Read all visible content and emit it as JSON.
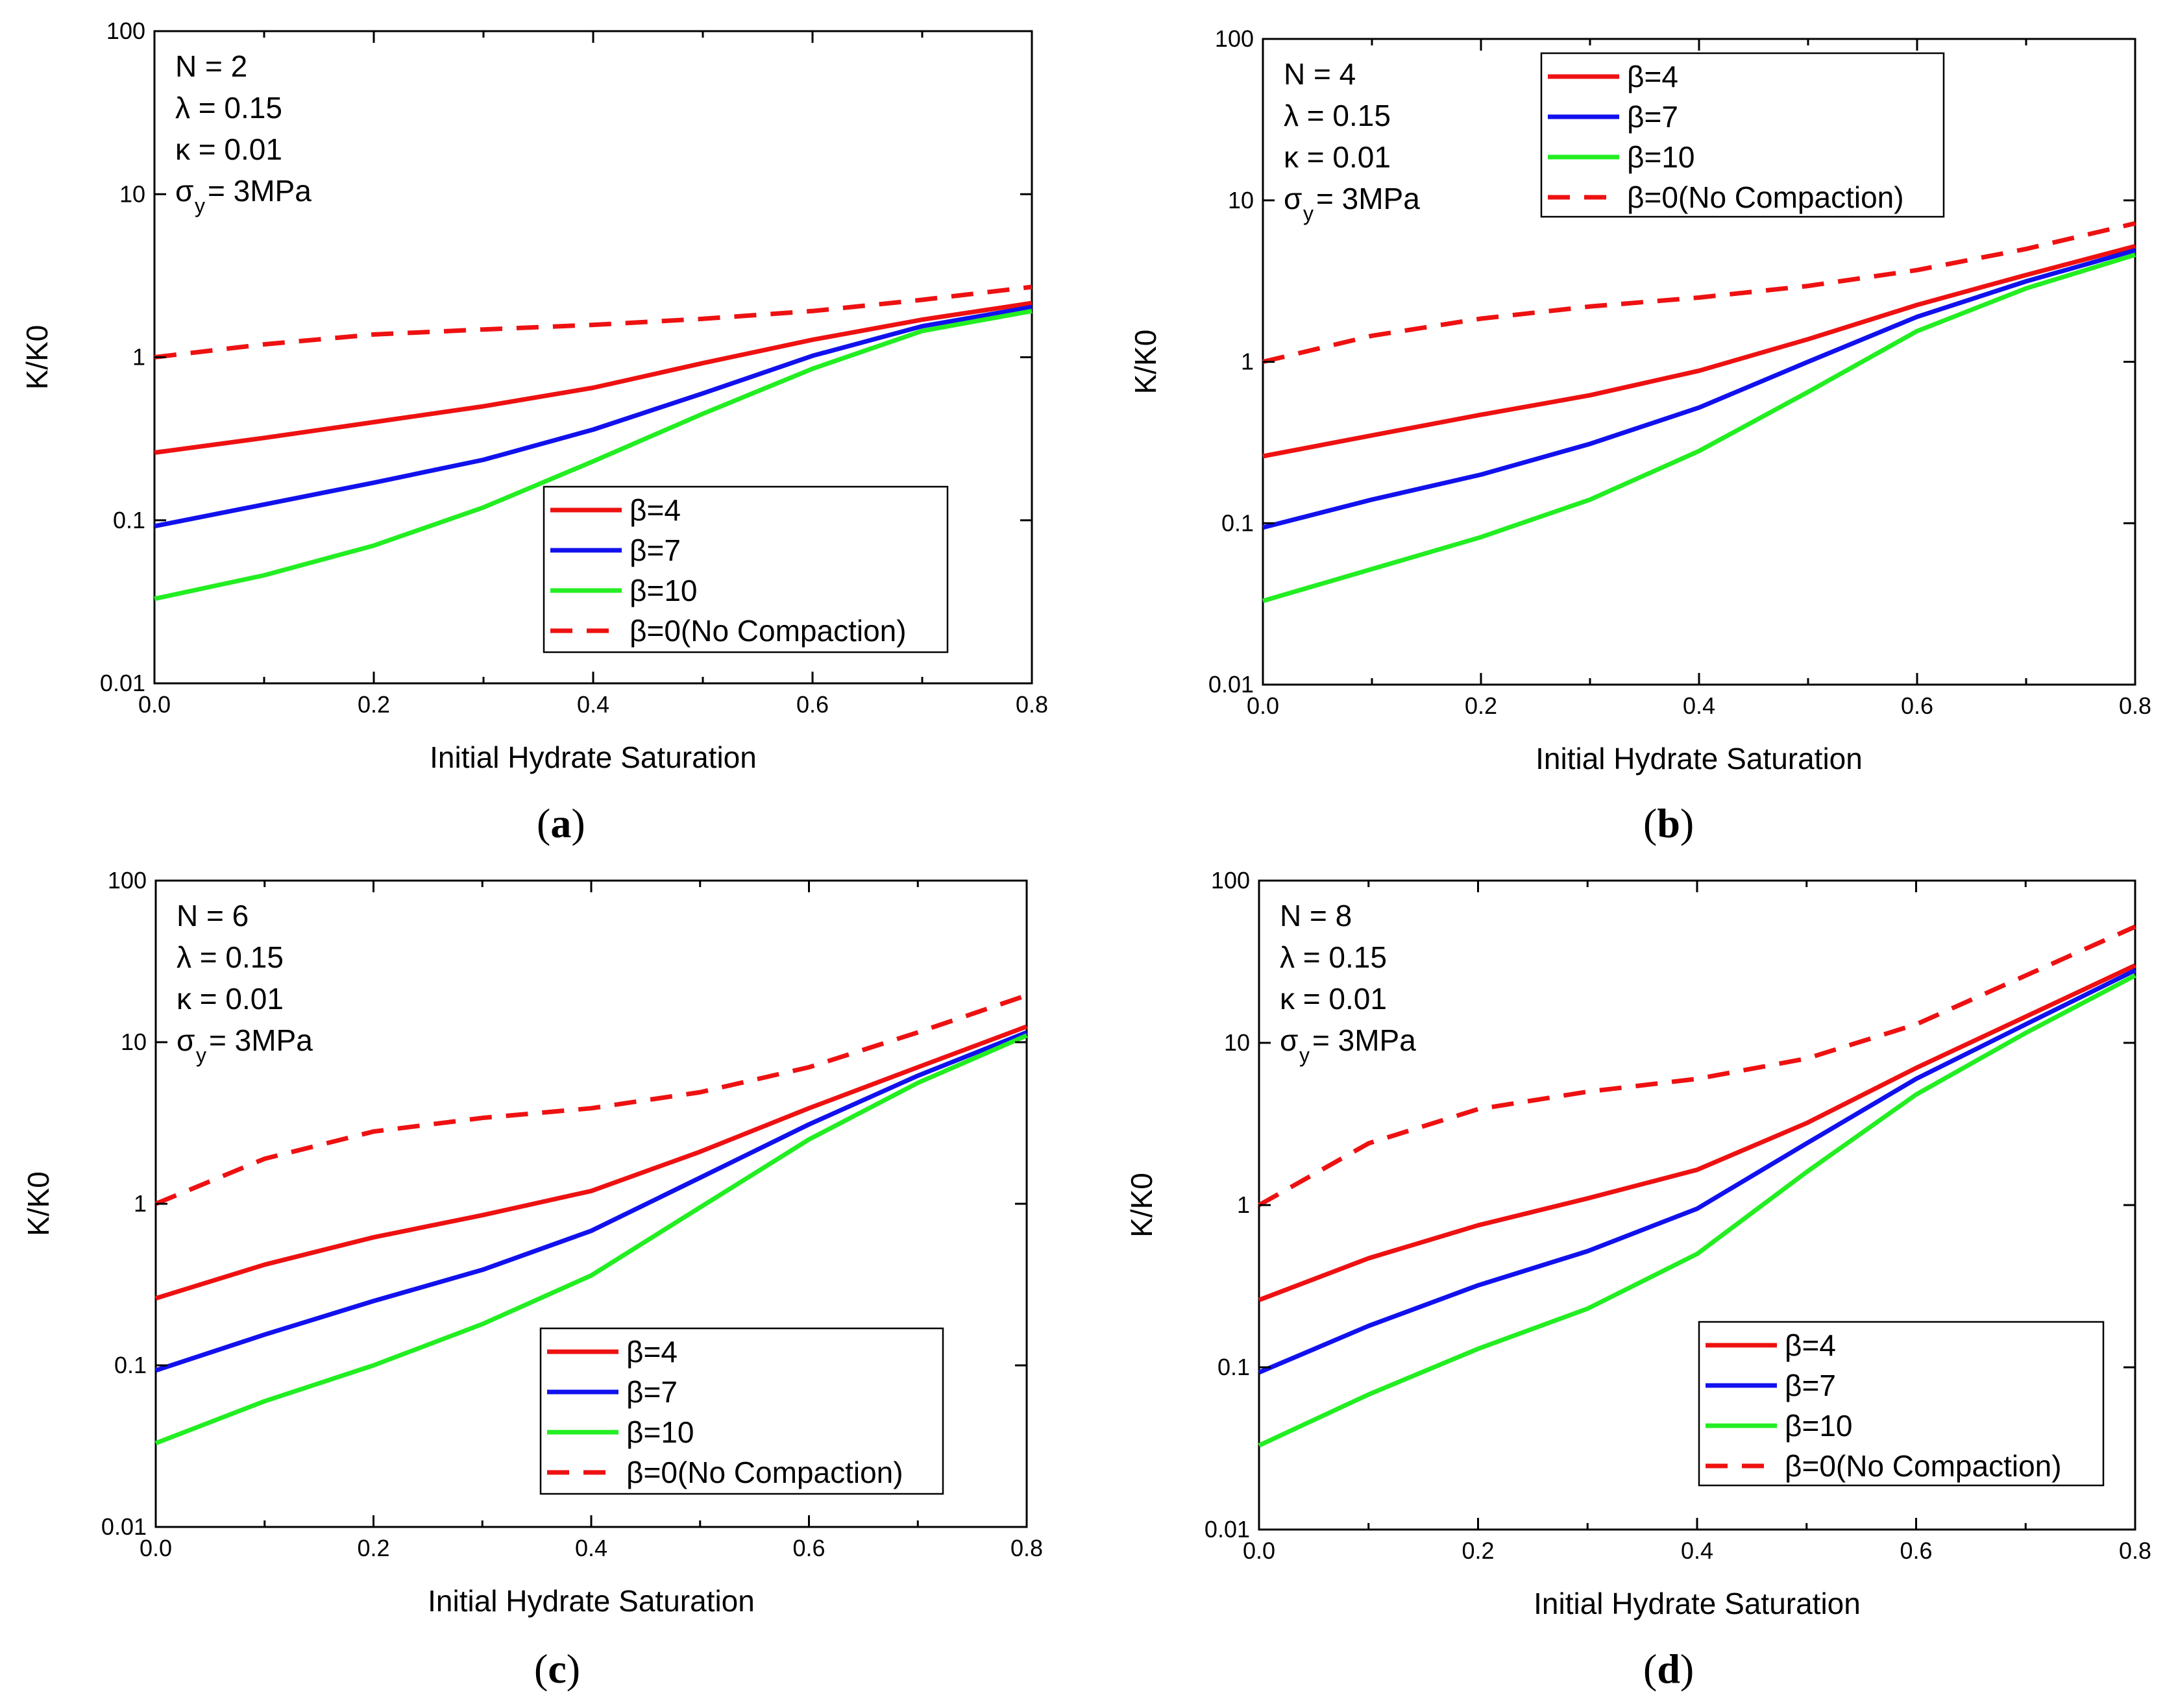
{
  "colors": {
    "beta4": "#ee1111",
    "beta7": "#1111ee",
    "beta10": "#22ee22",
    "beta0": "#ee1111"
  },
  "chart_data": [
    {
      "type": "line",
      "panel": "a",
      "panel_label": "a",
      "xlabel": "Initial Hydrate Saturation",
      "ylabel": "K/K0",
      "xlim": [
        0,
        0.8
      ],
      "ylim": [
        0.01,
        100
      ],
      "yscale": "log",
      "xticks": [
        "0.0",
        "0.2",
        "0.4",
        "0.6",
        "0.8"
      ],
      "yticks": [
        "0.01",
        "0.1",
        "1",
        "10",
        "100"
      ],
      "params": {
        "N": "N = 2",
        "lambda": "λ  = 0.15",
        "kappa": "κ  = 0.01",
        "sigma": "σ",
        "sigma_sub": "y",
        "sigma_val": "= 3MPa"
      },
      "legend": "center-right",
      "x": [
        0,
        0.1,
        0.2,
        0.3,
        0.4,
        0.5,
        0.6,
        0.7,
        0.8
      ],
      "series": [
        {
          "name": "β=4",
          "color_key": "beta4",
          "dashed": false,
          "values": [
            0.26,
            0.32,
            0.4,
            0.5,
            0.65,
            0.92,
            1.28,
            1.7,
            2.15
          ]
        },
        {
          "name": "β=7",
          "color_key": "beta7",
          "dashed": false,
          "values": [
            0.092,
            0.125,
            0.17,
            0.235,
            0.36,
            0.6,
            1.02,
            1.55,
            2.03
          ]
        },
        {
          "name": "β=10",
          "color_key": "beta10",
          "dashed": false,
          "values": [
            0.033,
            0.046,
            0.07,
            0.12,
            0.23,
            0.45,
            0.85,
            1.45,
            1.92
          ]
        },
        {
          "name": "β=0(No Compaction)",
          "color_key": "beta0",
          "dashed": true,
          "values": [
            1.0,
            1.2,
            1.38,
            1.48,
            1.58,
            1.72,
            1.92,
            2.25,
            2.7
          ]
        }
      ]
    },
    {
      "type": "line",
      "panel": "b",
      "panel_label": "b",
      "xlabel": "Initial Hydrate Saturation",
      "ylabel": "K/K0",
      "xlim": [
        0,
        0.8
      ],
      "ylim": [
        0.01,
        100
      ],
      "yscale": "log",
      "xticks": [
        "0.0",
        "0.2",
        "0.4",
        "0.6",
        "0.8"
      ],
      "yticks": [
        "0.01",
        "0.1",
        "1",
        "10",
        "100"
      ],
      "params": {
        "N": "N = 4",
        "lambda": "λ  = 0.15",
        "kappa": "κ  = 0.01",
        "sigma": "σ",
        "sigma_sub": "y",
        "sigma_val": "= 3MPa"
      },
      "legend": "top-right",
      "x": [
        0,
        0.1,
        0.2,
        0.3,
        0.4,
        0.5,
        0.6,
        0.7,
        0.8
      ],
      "series": [
        {
          "name": "β=4",
          "color_key": "beta4",
          "dashed": false,
          "values": [
            0.26,
            0.35,
            0.47,
            0.62,
            0.88,
            1.38,
            2.25,
            3.45,
            5.2
          ]
        },
        {
          "name": "β=7",
          "color_key": "beta7",
          "dashed": false,
          "values": [
            0.094,
            0.14,
            0.2,
            0.31,
            0.52,
            1.0,
            1.9,
            3.15,
            4.9
          ]
        },
        {
          "name": "β=10",
          "color_key": "beta10",
          "dashed": false,
          "values": [
            0.033,
            0.052,
            0.082,
            0.14,
            0.28,
            0.65,
            1.55,
            2.85,
            4.6
          ]
        },
        {
          "name": "β=0(No Compaction)",
          "color_key": "beta0",
          "dashed": true,
          "values": [
            1.0,
            1.45,
            1.85,
            2.2,
            2.5,
            2.95,
            3.7,
            5.0,
            7.2
          ]
        }
      ]
    },
    {
      "type": "line",
      "panel": "c",
      "panel_label": "c",
      "xlabel": "Initial Hydrate Saturation",
      "ylabel": "K/K0",
      "xlim": [
        0,
        0.8
      ],
      "ylim": [
        0.01,
        100
      ],
      "yscale": "log",
      "xticks": [
        "0.0",
        "0.2",
        "0.4",
        "0.6",
        "0.8"
      ],
      "yticks": [
        "0.01",
        "0.1",
        "1",
        "10",
        "100"
      ],
      "params": {
        "N": "N = 6",
        "lambda": "λ  = 0.15",
        "kappa": "κ  = 0.01",
        "sigma": "σ",
        "sigma_sub": "y",
        "sigma_val": "= 3MPa"
      },
      "legend": "bottom-right",
      "x": [
        0,
        0.1,
        0.2,
        0.3,
        0.4,
        0.5,
        0.6,
        0.7,
        0.8
      ],
      "series": [
        {
          "name": "β=4",
          "color_key": "beta4",
          "dashed": false,
          "values": [
            0.26,
            0.42,
            0.62,
            0.85,
            1.2,
            2.1,
            3.9,
            7.0,
            12.5
          ]
        },
        {
          "name": "β=7",
          "color_key": "beta7",
          "dashed": false,
          "values": [
            0.093,
            0.155,
            0.25,
            0.39,
            0.68,
            1.45,
            3.1,
            6.2,
            11.5
          ]
        },
        {
          "name": "β=10",
          "color_key": "beta10",
          "dashed": false,
          "values": [
            0.033,
            0.06,
            0.1,
            0.18,
            0.36,
            0.95,
            2.5,
            5.6,
            11.0
          ]
        },
        {
          "name": "β=0(No Compaction)",
          "color_key": "beta0",
          "dashed": true,
          "values": [
            1.0,
            1.9,
            2.8,
            3.4,
            3.9,
            4.9,
            7.0,
            11.5,
            19.5
          ]
        }
      ]
    },
    {
      "type": "line",
      "panel": "d",
      "panel_label": "d",
      "xlabel": "Initial Hydrate Saturation",
      "ylabel": "K/K0",
      "xlim": [
        0,
        0.8
      ],
      "ylim": [
        0.01,
        100
      ],
      "yscale": "log",
      "xticks": [
        "0.0",
        "0.2",
        "0.4",
        "0.6",
        "0.8"
      ],
      "yticks": [
        "0.01",
        "0.1",
        "1",
        "10",
        "100"
      ],
      "params": {
        "N": "N = 8",
        "lambda": "λ  = 0.15",
        "kappa": "κ  = 0.01",
        "sigma": "σ",
        "sigma_sub": "y",
        "sigma_val": "= 3MPa"
      },
      "legend": "bottom-right",
      "x": [
        0,
        0.1,
        0.2,
        0.3,
        0.4,
        0.5,
        0.6,
        0.7,
        0.8
      ],
      "series": [
        {
          "name": "β=4",
          "color_key": "beta4",
          "dashed": false,
          "values": [
            0.26,
            0.47,
            0.75,
            1.1,
            1.65,
            3.2,
            7.0,
            14.5,
            30.0
          ]
        },
        {
          "name": "β=7",
          "color_key": "beta7",
          "dashed": false,
          "values": [
            0.093,
            0.18,
            0.32,
            0.52,
            0.95,
            2.4,
            6.0,
            13.0,
            28.0
          ]
        },
        {
          "name": "β=10",
          "color_key": "beta10",
          "dashed": false,
          "values": [
            0.033,
            0.068,
            0.13,
            0.23,
            0.5,
            1.6,
            4.8,
            11.5,
            26.0
          ]
        },
        {
          "name": "β=0(No Compaction)",
          "color_key": "beta0",
          "dashed": true,
          "values": [
            1.0,
            2.4,
            3.9,
            5.0,
            6.0,
            8.0,
            13.0,
            26.0,
            52.0
          ]
        }
      ]
    }
  ]
}
